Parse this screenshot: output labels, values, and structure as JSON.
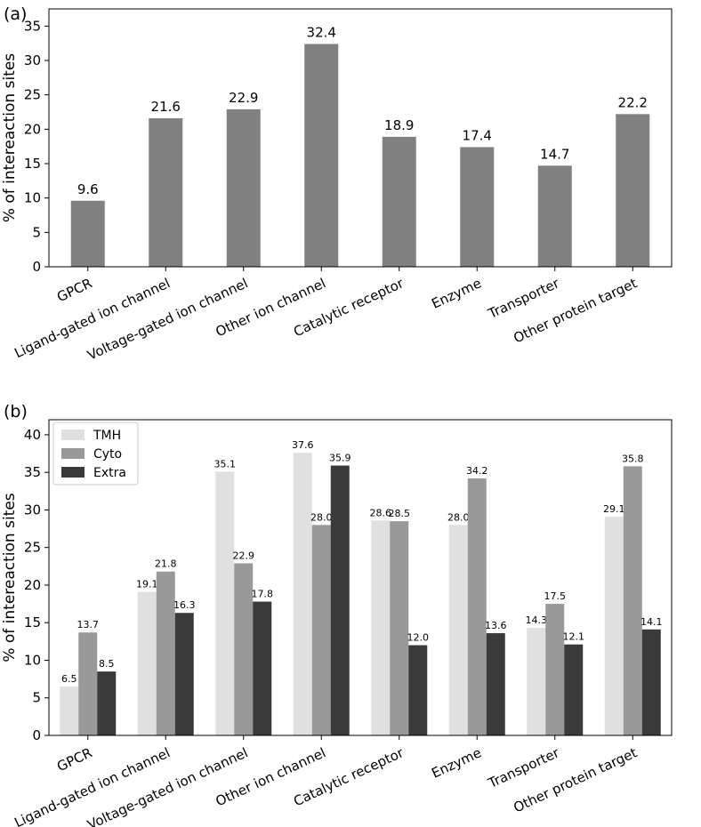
{
  "chart_data": [
    {
      "type": "bar",
      "panel_label": "(a)",
      "title": "",
      "xlabel": "",
      "ylabel": "% of intereaction sites",
      "ylim": [
        0,
        37.5
      ],
      "yticks": [
        0,
        5,
        10,
        15,
        20,
        25,
        30,
        35
      ],
      "categories": [
        "GPCR",
        "Ligand-gated ion channel",
        "Voltage-gated ion channel",
        "Other ion channel",
        "Catalytic receptor",
        "Enzyme",
        "Transporter",
        "Other protein target"
      ],
      "series": [
        {
          "name": "",
          "color": "#808080",
          "values": [
            9.6,
            21.6,
            22.9,
            32.4,
            18.9,
            17.4,
            14.7,
            22.2
          ]
        }
      ],
      "value_labels": [
        "9.6",
        "21.6",
        "22.9",
        "32.4",
        "18.9",
        "17.4",
        "14.7",
        "22.2"
      ],
      "legend": null
    },
    {
      "type": "bar",
      "panel_label": "(b)",
      "title": "",
      "xlabel": "",
      "ylabel": "% of intereaction sites",
      "ylim": [
        0,
        42
      ],
      "yticks": [
        0,
        5,
        10,
        15,
        20,
        25,
        30,
        35,
        40
      ],
      "categories": [
        "GPCR",
        "Ligand-gated ion channel",
        "Voltage-gated ion channel",
        "Other ion channel",
        "Catalytic receptor",
        "Enzyme",
        "Transporter",
        "Other protein target"
      ],
      "series": [
        {
          "name": "TMH",
          "color": "#e0e0e0",
          "values": [
            6.5,
            19.1,
            35.1,
            37.6,
            28.6,
            28.0,
            14.3,
            29.1
          ],
          "labels": [
            "6.5",
            "19.1",
            "35.1",
            "37.6",
            "28.6",
            "28.0",
            "14.3",
            "29.1"
          ]
        },
        {
          "name": "Cyto",
          "color": "#999999",
          "values": [
            13.7,
            21.8,
            22.9,
            28.0,
            28.5,
            34.2,
            17.5,
            35.8
          ],
          "labels": [
            "13.7",
            "21.8",
            "22.9",
            "28.0",
            "28.5",
            "34.2",
            "17.5",
            "35.8"
          ]
        },
        {
          "name": "Extra",
          "color": "#3a3a3a",
          "values": [
            8.5,
            16.3,
            17.8,
            35.9,
            12.0,
            13.6,
            12.1,
            14.1
          ],
          "labels": [
            "8.5",
            "16.3",
            "17.8",
            "35.9",
            "12.0",
            "13.6",
            "12.1",
            "14.1"
          ]
        }
      ],
      "legend": "top-left"
    }
  ]
}
